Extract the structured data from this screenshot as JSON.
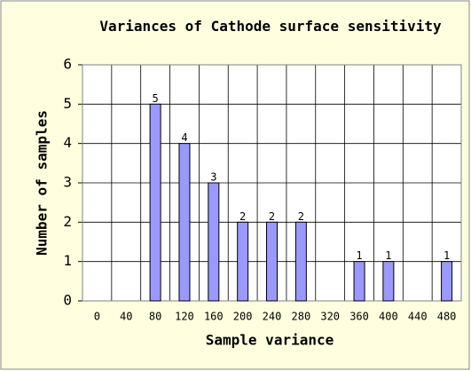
{
  "chart_data": {
    "type": "bar",
    "title": "Variances of Cathode surface sensitivity",
    "x_label": "Sample variance",
    "y_label": "Number of samples",
    "categories": [
      "0",
      "40",
      "80",
      "120",
      "160",
      "200",
      "240",
      "280",
      "320",
      "360",
      "400",
      "440",
      "480"
    ],
    "values": [
      0,
      0,
      5,
      4,
      3,
      2,
      2,
      2,
      0,
      1,
      1,
      0,
      1
    ],
    "color": "#9999ff",
    "ylim": [
      0,
      6
    ],
    "yticks": [
      0,
      1,
      2,
      3,
      4,
      5,
      6
    ],
    "grid": true
  }
}
